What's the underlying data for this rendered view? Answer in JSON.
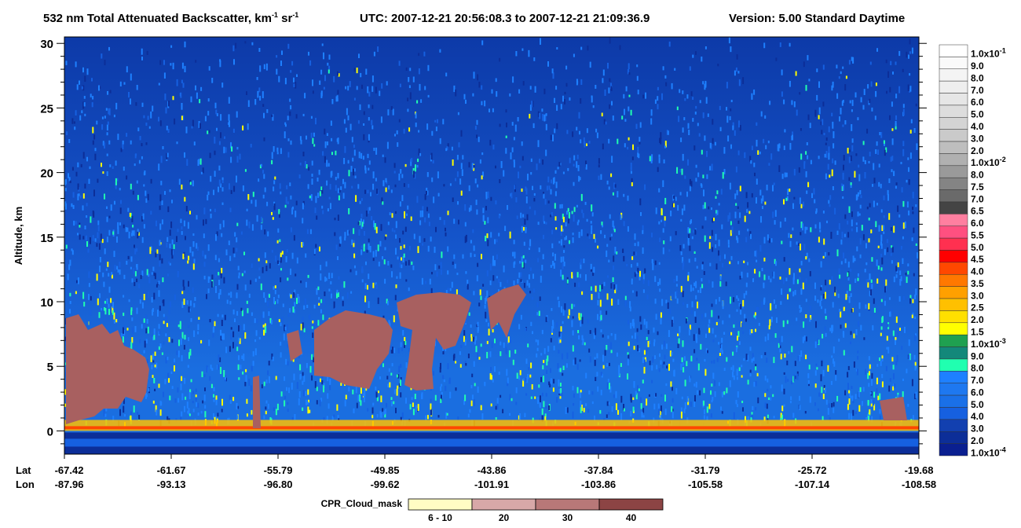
{
  "chart_data": {
    "type": "curtain",
    "title_parts": [
      "532 nm Total Attenuated Backscatter, km",
      "-1",
      " sr",
      "-1"
    ],
    "utc": "UTC:  2007-12-21 20:56:08.3  to  2007-12-21 21:09:36.9",
    "version": "Version: 5.00  Standard  Daytime",
    "ylabel": "Altitude, km",
    "ylim": [
      -1.8,
      30.5
    ],
    "yticks": [
      0,
      5,
      10,
      15,
      20,
      25,
      30
    ],
    "x_rows": [
      "Lat",
      "Lon"
    ],
    "lat": [
      "-67.42",
      "-61.67",
      "-55.79",
      "-49.85",
      "-43.86",
      "-37.84",
      "-31.79",
      "-25.72",
      "-19.68"
    ],
    "lon": [
      "-87.96",
      "-93.13",
      "-96.80",
      "-99.62",
      "-101.91",
      "-103.86",
      "-105.58",
      "-107.14",
      "-108.58"
    ],
    "colorbar": {
      "labels": [
        {
          "base": "1.0x10",
          "exp": "-1"
        },
        "9.0",
        "8.0",
        "7.0",
        "6.0",
        "5.0",
        "4.0",
        "3.0",
        "2.0",
        {
          "base": "1.0x10",
          "exp": "-2"
        },
        "8.0",
        "7.5",
        "7.0",
        "6.5",
        "6.0",
        "5.5",
        "5.0",
        "4.5",
        "4.0",
        "3.5",
        "3.0",
        "2.5",
        "2.0",
        "1.5",
        {
          "base": "1.0x10",
          "exp": "-3"
        },
        "9.0",
        "8.0",
        "7.0",
        "6.0",
        "5.0",
        "4.0",
        "3.0",
        "2.0",
        {
          "base": "1.0x10",
          "exp": "-4"
        }
      ],
      "colors": [
        "#ffffff",
        "#fafafa",
        "#f4f4f4",
        "#eeeeee",
        "#e6e6e6",
        "#dddddd",
        "#d4d4d4",
        "#cacaca",
        "#bebebe",
        "#b0b0b0",
        "#9a9a9a",
        "#848484",
        "#6a6a6a",
        "#444444",
        "#ff7fa0",
        "#ff5080",
        "#ff3050",
        "#ff0000",
        "#ff4800",
        "#ff7800",
        "#ffa000",
        "#ffc000",
        "#ffe000",
        "#ffff00",
        "#1fa050",
        "#13887a",
        "#20ffb0",
        "#1e80ff",
        "#1e78f0",
        "#1a70e8",
        "#1660e0",
        "#1240b0",
        "#0c2e98",
        "#0a1f90"
      ]
    },
    "mask_legend": {
      "title": "CPR_Cloud_mask",
      "labels": [
        "6 - 10",
        "20",
        "30",
        "40"
      ],
      "colors": [
        "#fffcc4",
        "#d8a8a8",
        "#b87878",
        "#8c4444"
      ]
    }
  }
}
